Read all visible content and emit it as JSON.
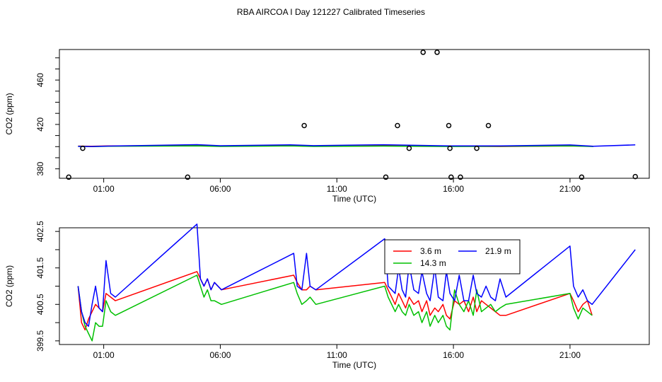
{
  "title": "RBA AIRCOA I  Day 121227  Calibrated Timeseries",
  "chart_data": [
    {
      "type": "scatter",
      "xlabel": "Time (UTC)",
      "ylabel": "CO2 (ppm)",
      "x_unit": "hours UTC",
      "xlim": [
        -0.9,
        24.4
      ],
      "ylim": [
        371.5,
        487.5
      ],
      "x_ticks": [
        {
          "value": 1,
          "label": "01:00"
        },
        {
          "value": 6,
          "label": "06:00"
        },
        {
          "value": 11,
          "label": "11:00"
        },
        {
          "value": 16,
          "label": "16:00"
        },
        {
          "value": 21,
          "label": "21:00"
        }
      ],
      "y_ticks": [
        {
          "value": 380,
          "label": "380"
        },
        {
          "value": 420,
          "label": "420"
        },
        {
          "value": 460,
          "label": "460"
        }
      ],
      "grid": false,
      "series": [
        {
          "color": "#ff0000",
          "style": "line",
          "x": [
            -0.1,
            0.5,
            1.2,
            5.0,
            6.0,
            9.0,
            10.0,
            13.0,
            16.0,
            18.0,
            21.0,
            22.0
          ],
          "y": [
            400.5,
            400.3,
            400.6,
            400.9,
            400.5,
            400.8,
            400.4,
            400.6,
            400.4,
            400.1,
            400.7,
            400.3
          ]
        },
        {
          "color": "#00c000",
          "style": "line",
          "x": [
            -0.1,
            0.5,
            1.2,
            5.0,
            6.0,
            9.0,
            10.0,
            13.0,
            16.0,
            18.0,
            21.0,
            22.0
          ],
          "y": [
            400.3,
            400.0,
            400.3,
            400.7,
            400.2,
            400.6,
            400.2,
            400.5,
            400.1,
            400.3,
            400.7,
            400.1
          ]
        },
        {
          "color": "#0000ff",
          "style": "line",
          "x": [
            -0.1,
            0.5,
            1.2,
            5.0,
            6.0,
            9.0,
            10.0,
            13.0,
            16.0,
            18.0,
            21.0,
            22.0,
            23.8
          ],
          "y": [
            400.2,
            400.1,
            400.5,
            401.8,
            400.8,
            401.6,
            400.9,
            401.7,
            400.6,
            400.6,
            401.5,
            400.4,
            401.6
          ]
        },
        {
          "color": "#000000",
          "style": "open-circle",
          "x": [
            -0.5,
            0.1,
            4.6,
            9.6,
            13.1,
            13.6,
            14.1,
            14.7,
            15.3,
            15.8,
            15.85,
            15.9,
            16.3,
            17.0,
            17.5,
            21.5,
            23.8
          ],
          "y": [
            372.5,
            398.5,
            372.5,
            419.0,
            372.5,
            419.0,
            398.5,
            485.0,
            485.0,
            419.0,
            398.5,
            372.5,
            372.5,
            398.5,
            419.0,
            372.5,
            373.0
          ]
        }
      ]
    },
    {
      "type": "line",
      "xlabel": "Time (UTC)",
      "ylabel": "CO2 (ppm)",
      "x_unit": "hours UTC",
      "xlim": [
        -0.9,
        24.4
      ],
      "ylim": [
        399.4,
        402.6
      ],
      "x_ticks": [
        {
          "value": 1,
          "label": "01:00"
        },
        {
          "value": 6,
          "label": "06:00"
        },
        {
          "value": 11,
          "label": "11:00"
        },
        {
          "value": 16,
          "label": "16:00"
        },
        {
          "value": 21,
          "label": "21:00"
        }
      ],
      "y_ticks": [
        {
          "value": 399.5,
          "label": "399.5"
        },
        {
          "value": 400.5,
          "label": "400.5"
        },
        {
          "value": 401.5,
          "label": "401.5"
        },
        {
          "value": 402.5,
          "label": "402.5"
        }
      ],
      "grid": false,
      "legend": {
        "placement": "top-right-inside",
        "columns": 2
      },
      "series": [
        {
          "name": "3.6 m",
          "color": "#ff0000",
          "x": [
            -0.1,
            0.05,
            0.2,
            0.35,
            0.5,
            0.65,
            0.8,
            0.95,
            1.1,
            1.3,
            1.5,
            5.0,
            5.15,
            5.3,
            5.45,
            5.6,
            5.75,
            6.05,
            9.15,
            9.3,
            9.5,
            9.7,
            9.85,
            10.1,
            13.05,
            13.2,
            13.5,
            13.65,
            13.8,
            13.95,
            14.1,
            14.3,
            14.5,
            14.65,
            14.85,
            15.0,
            15.2,
            15.35,
            15.55,
            15.7,
            15.85,
            16.05,
            16.25,
            16.45,
            16.65,
            16.85,
            17.0,
            17.2,
            17.4,
            17.6,
            17.8,
            18.0,
            18.25,
            21.0,
            21.15,
            21.35,
            21.55,
            21.75,
            21.95
          ],
          "y": [
            401.0,
            400.0,
            399.8,
            400.1,
            400.3,
            400.5,
            400.4,
            400.3,
            400.8,
            400.7,
            400.6,
            401.4,
            401.2,
            401.0,
            401.2,
            400.9,
            401.1,
            400.9,
            401.3,
            401.1,
            400.9,
            400.9,
            401.0,
            400.9,
            401.1,
            400.9,
            400.5,
            400.8,
            400.6,
            400.4,
            400.7,
            400.5,
            400.6,
            400.3,
            400.6,
            400.2,
            400.4,
            400.3,
            400.5,
            400.2,
            400.1,
            400.6,
            400.5,
            400.6,
            400.3,
            400.7,
            400.3,
            400.6,
            400.5,
            400.4,
            400.3,
            400.2,
            400.2,
            400.8,
            400.6,
            400.3,
            400.5,
            400.6,
            400.2
          ]
        },
        {
          "name": "14.3 m",
          "color": "#00c000",
          "x": [
            -0.1,
            0.05,
            0.2,
            0.35,
            0.5,
            0.65,
            0.8,
            0.95,
            1.1,
            1.3,
            1.5,
            5.0,
            5.15,
            5.3,
            5.45,
            5.6,
            5.75,
            6.05,
            9.15,
            9.3,
            9.5,
            9.7,
            9.85,
            10.1,
            13.05,
            13.2,
            13.5,
            13.65,
            13.8,
            13.95,
            14.1,
            14.3,
            14.5,
            14.65,
            14.85,
            15.0,
            15.2,
            15.35,
            15.55,
            15.7,
            15.85,
            16.05,
            16.25,
            16.45,
            16.65,
            16.85,
            17.0,
            17.2,
            17.4,
            17.6,
            17.8,
            18.0,
            18.25,
            21.0,
            21.15,
            21.35,
            21.55,
            21.75,
            21.95
          ],
          "y": [
            401.0,
            400.3,
            399.9,
            399.7,
            399.5,
            400.0,
            399.9,
            399.9,
            400.6,
            400.3,
            400.2,
            401.3,
            401.0,
            400.7,
            400.9,
            400.6,
            400.6,
            400.5,
            401.1,
            400.8,
            400.5,
            400.6,
            400.7,
            400.5,
            401.0,
            400.7,
            400.3,
            400.5,
            400.3,
            400.2,
            400.5,
            400.2,
            400.3,
            400.0,
            400.3,
            399.9,
            400.2,
            400.0,
            400.2,
            399.9,
            399.8,
            400.9,
            400.5,
            400.3,
            400.6,
            400.2,
            400.9,
            400.3,
            400.4,
            400.5,
            400.3,
            400.4,
            400.5,
            400.8,
            400.4,
            400.1,
            400.4,
            400.3,
            400.2
          ]
        },
        {
          "name": "21.9 m",
          "color": "#0000ff",
          "x": [
            -0.1,
            0.05,
            0.2,
            0.35,
            0.5,
            0.65,
            0.8,
            0.95,
            1.1,
            1.3,
            1.5,
            5.0,
            5.15,
            5.3,
            5.45,
            5.6,
            5.75,
            6.05,
            9.15,
            9.3,
            9.5,
            9.7,
            9.85,
            10.1,
            13.05,
            13.2,
            13.5,
            13.65,
            13.8,
            13.95,
            14.1,
            14.3,
            14.5,
            14.65,
            14.85,
            15.0,
            15.2,
            15.35,
            15.55,
            15.7,
            15.85,
            16.05,
            16.25,
            16.45,
            16.65,
            16.85,
            17.0,
            17.2,
            17.4,
            17.6,
            17.8,
            18.0,
            18.25,
            21.0,
            21.15,
            21.35,
            21.55,
            21.75,
            21.95,
            23.8
          ],
          "y": [
            401.0,
            400.3,
            400.0,
            399.9,
            400.5,
            401.0,
            400.4,
            400.3,
            401.7,
            400.8,
            400.7,
            402.7,
            401.2,
            401.0,
            401.2,
            400.9,
            401.1,
            400.9,
            401.9,
            401.0,
            400.9,
            401.9,
            401.0,
            400.9,
            402.3,
            401.0,
            400.8,
            401.5,
            400.9,
            400.7,
            401.6,
            400.9,
            400.8,
            401.4,
            400.8,
            400.6,
            401.5,
            400.7,
            400.6,
            401.4,
            400.8,
            400.6,
            401.3,
            400.6,
            400.6,
            401.3,
            400.8,
            400.7,
            401.0,
            400.7,
            400.6,
            401.2,
            400.7,
            402.1,
            401.0,
            400.7,
            400.9,
            400.6,
            400.5,
            402.0
          ]
        }
      ]
    }
  ]
}
